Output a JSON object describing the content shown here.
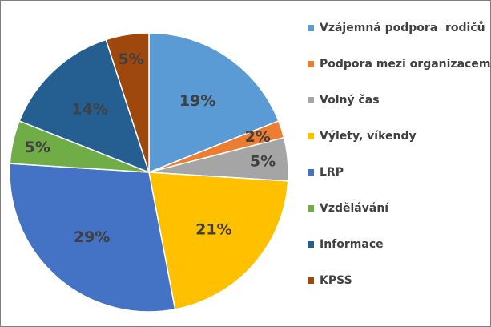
{
  "chart_data": {
    "type": "pie",
    "title": "",
    "start_angle_deg": 0,
    "direction": "clockwise",
    "slices": [
      {
        "name": "Vzájemná podpora  rodičů",
        "value": 19,
        "label": "19%",
        "color": "#5b9bd5"
      },
      {
        "name": "Podpora mezi organizacemi",
        "value": 2,
        "label": "2%",
        "color": "#ed7d31"
      },
      {
        "name": "Volný čas",
        "value": 5,
        "label": "5%",
        "color": "#a5a5a5"
      },
      {
        "name": "Výlety, víkendy",
        "value": 21,
        "label": "21%",
        "color": "#ffc000"
      },
      {
        "name": "LRP",
        "value": 29,
        "label": "29%",
        "color": "#4472c4"
      },
      {
        "name": "Vzdělávání",
        "value": 5,
        "label": "5%",
        "color": "#70ad47"
      },
      {
        "name": "Informace",
        "value": 14,
        "label": "14%",
        "color": "#255e91"
      },
      {
        "name": "KPSS",
        "value": 5,
        "label": "5%",
        "color": "#9e480e"
      }
    ],
    "legend_position": "right"
  }
}
